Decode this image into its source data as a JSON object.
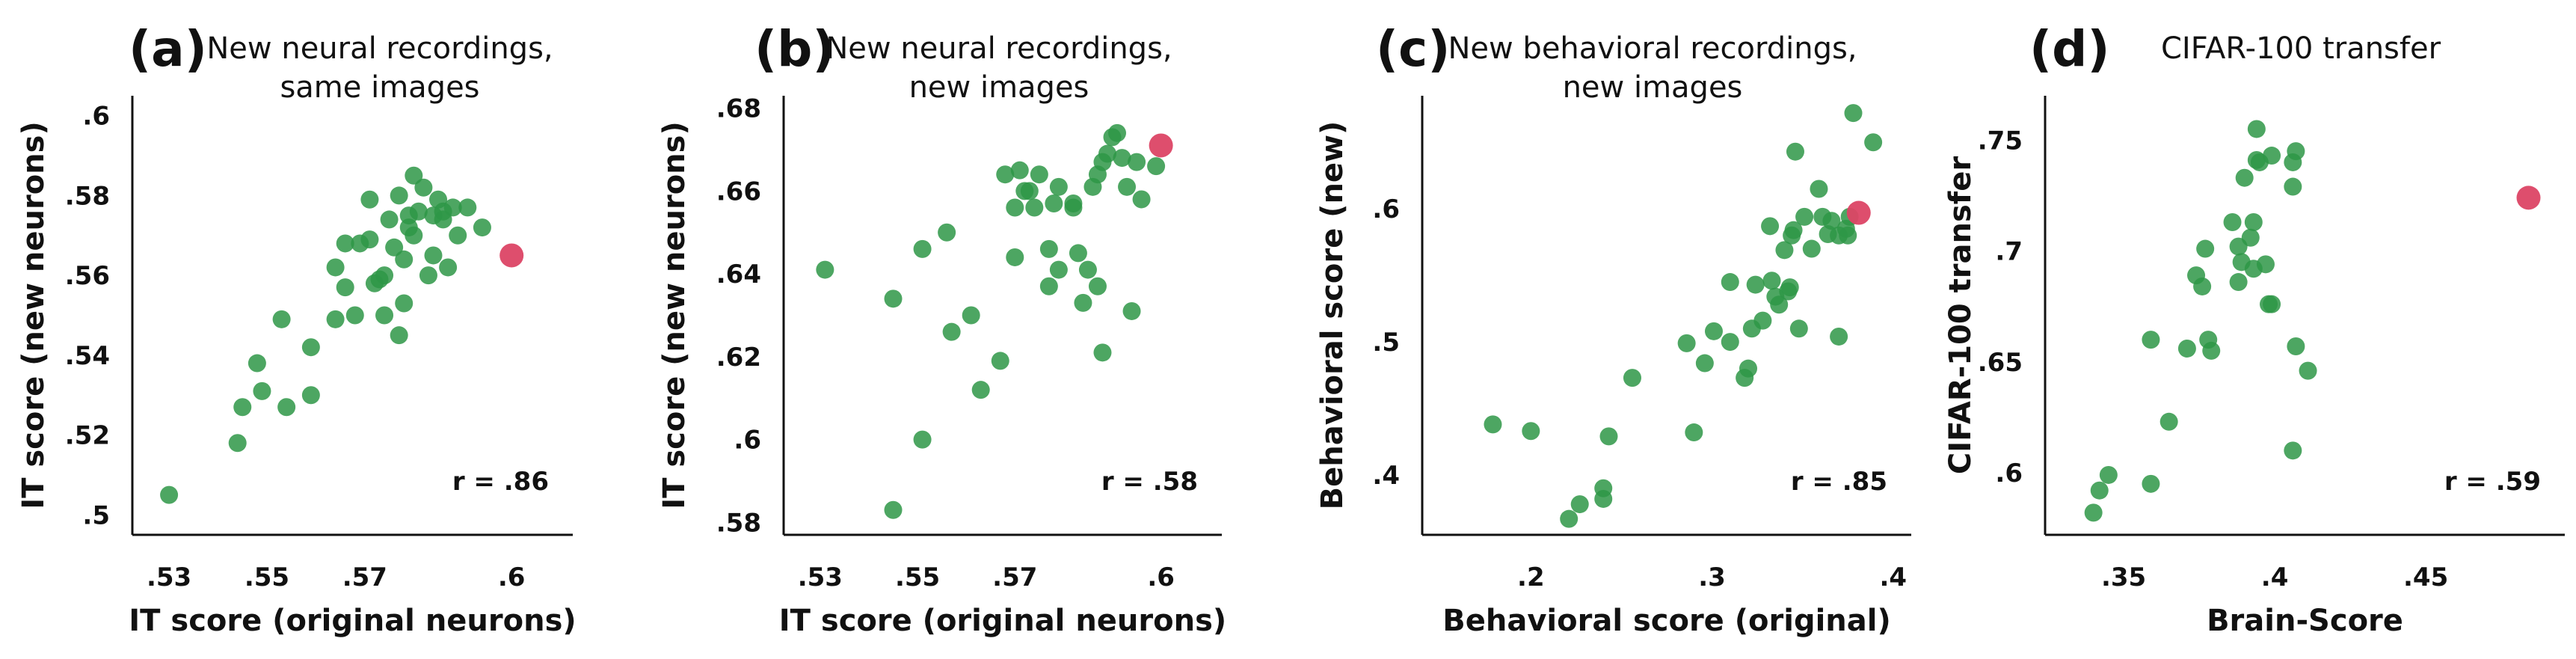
{
  "colors": {
    "model": "#2e9646",
    "highlight": "#dc4565",
    "axis": "#111111"
  },
  "chart_data": [
    {
      "type": "scatter",
      "letter": "(a)",
      "title": [
        "New neural recordings,",
        "same images"
      ],
      "xlabel": "IT score (original neurons)",
      "ylabel": "IT score (new neurons)",
      "xlim": [
        0.5225,
        0.6125
      ],
      "ylim": [
        0.495,
        0.605
      ],
      "xticks": [
        0.53,
        0.55,
        0.57,
        0.6
      ],
      "xtick_labels": [
        ".53",
        ".55",
        ".57",
        ".6"
      ],
      "yticks": [
        0.5,
        0.52,
        0.54,
        0.56,
        0.58,
        0.6
      ],
      "ytick_labels": [
        ".5",
        ".52",
        ".54",
        ".56",
        ".58",
        ".6"
      ],
      "r_label": "r = .86",
      "highlight": {
        "x": 0.6,
        "y": 0.565
      },
      "points": [
        [
          0.53,
          0.505
        ],
        [
          0.544,
          0.518
        ],
        [
          0.545,
          0.527
        ],
        [
          0.549,
          0.531
        ],
        [
          0.548,
          0.538
        ],
        [
          0.554,
          0.527
        ],
        [
          0.553,
          0.549
        ],
        [
          0.559,
          0.53
        ],
        [
          0.559,
          0.542
        ],
        [
          0.564,
          0.549
        ],
        [
          0.564,
          0.562
        ],
        [
          0.566,
          0.557
        ],
        [
          0.566,
          0.568
        ],
        [
          0.568,
          0.55
        ],
        [
          0.569,
          0.568
        ],
        [
          0.571,
          0.569
        ],
        [
          0.571,
          0.579
        ],
        [
          0.573,
          0.559
        ],
        [
          0.574,
          0.56
        ],
        [
          0.574,
          0.55
        ],
        [
          0.575,
          0.574
        ],
        [
          0.576,
          0.567
        ],
        [
          0.577,
          0.545
        ],
        [
          0.578,
          0.564
        ],
        [
          0.578,
          0.553
        ],
        [
          0.579,
          0.572
        ],
        [
          0.579,
          0.575
        ],
        [
          0.58,
          0.585
        ],
        [
          0.581,
          0.576
        ],
        [
          0.582,
          0.582
        ],
        [
          0.583,
          0.56
        ],
        [
          0.584,
          0.575
        ],
        [
          0.585,
          0.579
        ],
        [
          0.586,
          0.576
        ],
        [
          0.587,
          0.562
        ],
        [
          0.588,
          0.577
        ],
        [
          0.589,
          0.57
        ],
        [
          0.591,
          0.577
        ],
        [
          0.594,
          0.572
        ],
        [
          0.584,
          0.565
        ],
        [
          0.586,
          0.574
        ],
        [
          0.58,
          0.57
        ],
        [
          0.577,
          0.58
        ],
        [
          0.572,
          0.558
        ]
      ]
    },
    {
      "type": "scatter",
      "letter": "(b)",
      "title": [
        "New neural recordings,",
        "new images"
      ],
      "xlabel": "IT score (original neurons)",
      "ylabel": "IT score (new neurons)",
      "xlim": [
        0.5225,
        0.6125
      ],
      "ylim": [
        0.577,
        0.683
      ],
      "xticks": [
        0.53,
        0.55,
        0.57,
        0.6
      ],
      "xtick_labels": [
        ".53",
        ".55",
        ".57",
        ".6"
      ],
      "yticks": [
        0.58,
        0.6,
        0.62,
        0.64,
        0.66,
        0.68
      ],
      "ytick_labels": [
        ".58",
        ".6",
        ".62",
        ".64",
        ".66",
        ".68"
      ],
      "r_label": "r = .58",
      "highlight": {
        "x": 0.6,
        "y": 0.671
      },
      "points": [
        [
          0.531,
          0.641
        ],
        [
          0.545,
          0.634
        ],
        [
          0.545,
          0.583
        ],
        [
          0.551,
          0.6
        ],
        [
          0.551,
          0.646
        ],
        [
          0.556,
          0.65
        ],
        [
          0.557,
          0.626
        ],
        [
          0.561,
          0.63
        ],
        [
          0.563,
          0.612
        ],
        [
          0.567,
          0.619
        ],
        [
          0.568,
          0.664
        ],
        [
          0.57,
          0.644
        ],
        [
          0.57,
          0.656
        ],
        [
          0.571,
          0.665
        ],
        [
          0.573,
          0.66
        ],
        [
          0.574,
          0.656
        ],
        [
          0.575,
          0.664
        ],
        [
          0.577,
          0.637
        ],
        [
          0.577,
          0.646
        ],
        [
          0.578,
          0.657
        ],
        [
          0.579,
          0.661
        ],
        [
          0.579,
          0.641
        ],
        [
          0.582,
          0.656
        ],
        [
          0.583,
          0.645
        ],
        [
          0.584,
          0.633
        ],
        [
          0.585,
          0.641
        ],
        [
          0.586,
          0.661
        ],
        [
          0.587,
          0.664
        ],
        [
          0.588,
          0.667
        ],
        [
          0.588,
          0.621
        ],
        [
          0.589,
          0.669
        ],
        [
          0.59,
          0.673
        ],
        [
          0.591,
          0.674
        ],
        [
          0.592,
          0.668
        ],
        [
          0.593,
          0.661
        ],
        [
          0.594,
          0.631
        ],
        [
          0.595,
          0.667
        ],
        [
          0.596,
          0.658
        ],
        [
          0.599,
          0.666
        ],
        [
          0.587,
          0.637
        ],
        [
          0.582,
          0.657
        ],
        [
          0.572,
          0.66
        ]
      ]
    },
    {
      "type": "scatter",
      "letter": "(c)",
      "title": [
        "New behavioral recordings,",
        "new images"
      ],
      "xlabel": "Behavioral score (original)",
      "ylabel": "Behavioral score (new)",
      "xlim": [
        0.14,
        0.41
      ],
      "ylim": [
        0.355,
        0.685
      ],
      "xticks": [
        0.2,
        0.3,
        0.4
      ],
      "xtick_labels": [
        ".2",
        ".3",
        ".4"
      ],
      "yticks": [
        0.4,
        0.5,
        0.6
      ],
      "ytick_labels": [
        ".4",
        ".5",
        ".6"
      ],
      "r_label": "r = .85",
      "highlight": {
        "x": 0.381,
        "y": 0.597
      },
      "points": [
        [
          0.179,
          0.438
        ],
        [
          0.2,
          0.433
        ],
        [
          0.221,
          0.367
        ],
        [
          0.227,
          0.378
        ],
        [
          0.24,
          0.39
        ],
        [
          0.24,
          0.382
        ],
        [
          0.243,
          0.429
        ],
        [
          0.256,
          0.473
        ],
        [
          0.286,
          0.499
        ],
        [
          0.29,
          0.432
        ],
        [
          0.296,
          0.484
        ],
        [
          0.301,
          0.508
        ],
        [
          0.31,
          0.545
        ],
        [
          0.31,
          0.5
        ],
        [
          0.318,
          0.473
        ],
        [
          0.32,
          0.48
        ],
        [
          0.322,
          0.51
        ],
        [
          0.324,
          0.543
        ],
        [
          0.328,
          0.516
        ],
        [
          0.332,
          0.587
        ],
        [
          0.333,
          0.546
        ],
        [
          0.335,
          0.534
        ],
        [
          0.337,
          0.528
        ],
        [
          0.34,
          0.569
        ],
        [
          0.342,
          0.538
        ],
        [
          0.343,
          0.541
        ],
        [
          0.344,
          0.58
        ],
        [
          0.346,
          0.643
        ],
        [
          0.348,
          0.51
        ],
        [
          0.351,
          0.594
        ],
        [
          0.355,
          0.57
        ],
        [
          0.359,
          0.615
        ],
        [
          0.361,
          0.594
        ],
        [
          0.364,
          0.581
        ],
        [
          0.366,
          0.591
        ],
        [
          0.37,
          0.504
        ],
        [
          0.37,
          0.58
        ],
        [
          0.374,
          0.585
        ],
        [
          0.376,
          0.594
        ],
        [
          0.378,
          0.672
        ],
        [
          0.389,
          0.65
        ],
        [
          0.375,
          0.58
        ],
        [
          0.345,
          0.584
        ]
      ]
    },
    {
      "type": "scatter",
      "letter": "(d)",
      "title": [
        "CIFAR-100 transfer"
      ],
      "xlabel": "Brain-Score",
      "ylabel": "CIFAR-100 transfer",
      "xlim": [
        0.324,
        0.496
      ],
      "ylim": [
        0.572,
        0.77
      ],
      "xticks": [
        0.35,
        0.4,
        0.45
      ],
      "xtick_labels": [
        ".35",
        ".4",
        ".45"
      ],
      "yticks": [
        0.6,
        0.65,
        0.7,
        0.75
      ],
      "ytick_labels": [
        ".6",
        ".65",
        ".7",
        ".75"
      ],
      "r_label": "r = .59",
      "highlight": {
        "x": 0.484,
        "y": 0.724
      },
      "points": [
        [
          0.34,
          0.582
        ],
        [
          0.342,
          0.592
        ],
        [
          0.345,
          0.599
        ],
        [
          0.359,
          0.595
        ],
        [
          0.359,
          0.66
        ],
        [
          0.365,
          0.623
        ],
        [
          0.371,
          0.656
        ],
        [
          0.374,
          0.689
        ],
        [
          0.376,
          0.684
        ],
        [
          0.377,
          0.701
        ],
        [
          0.378,
          0.66
        ],
        [
          0.379,
          0.655
        ],
        [
          0.386,
          0.713
        ],
        [
          0.388,
          0.702
        ],
        [
          0.388,
          0.686
        ],
        [
          0.389,
          0.695
        ],
        [
          0.39,
          0.733
        ],
        [
          0.392,
          0.706
        ],
        [
          0.393,
          0.692
        ],
        [
          0.393,
          0.713
        ],
        [
          0.394,
          0.741
        ],
        [
          0.394,
          0.755
        ],
        [
          0.395,
          0.74
        ],
        [
          0.397,
          0.694
        ],
        [
          0.398,
          0.676
        ],
        [
          0.399,
          0.676
        ],
        [
          0.399,
          0.743
        ],
        [
          0.406,
          0.729
        ],
        [
          0.406,
          0.74
        ],
        [
          0.407,
          0.745
        ],
        [
          0.406,
          0.61
        ],
        [
          0.407,
          0.657
        ],
        [
          0.411,
          0.646
        ]
      ]
    }
  ]
}
